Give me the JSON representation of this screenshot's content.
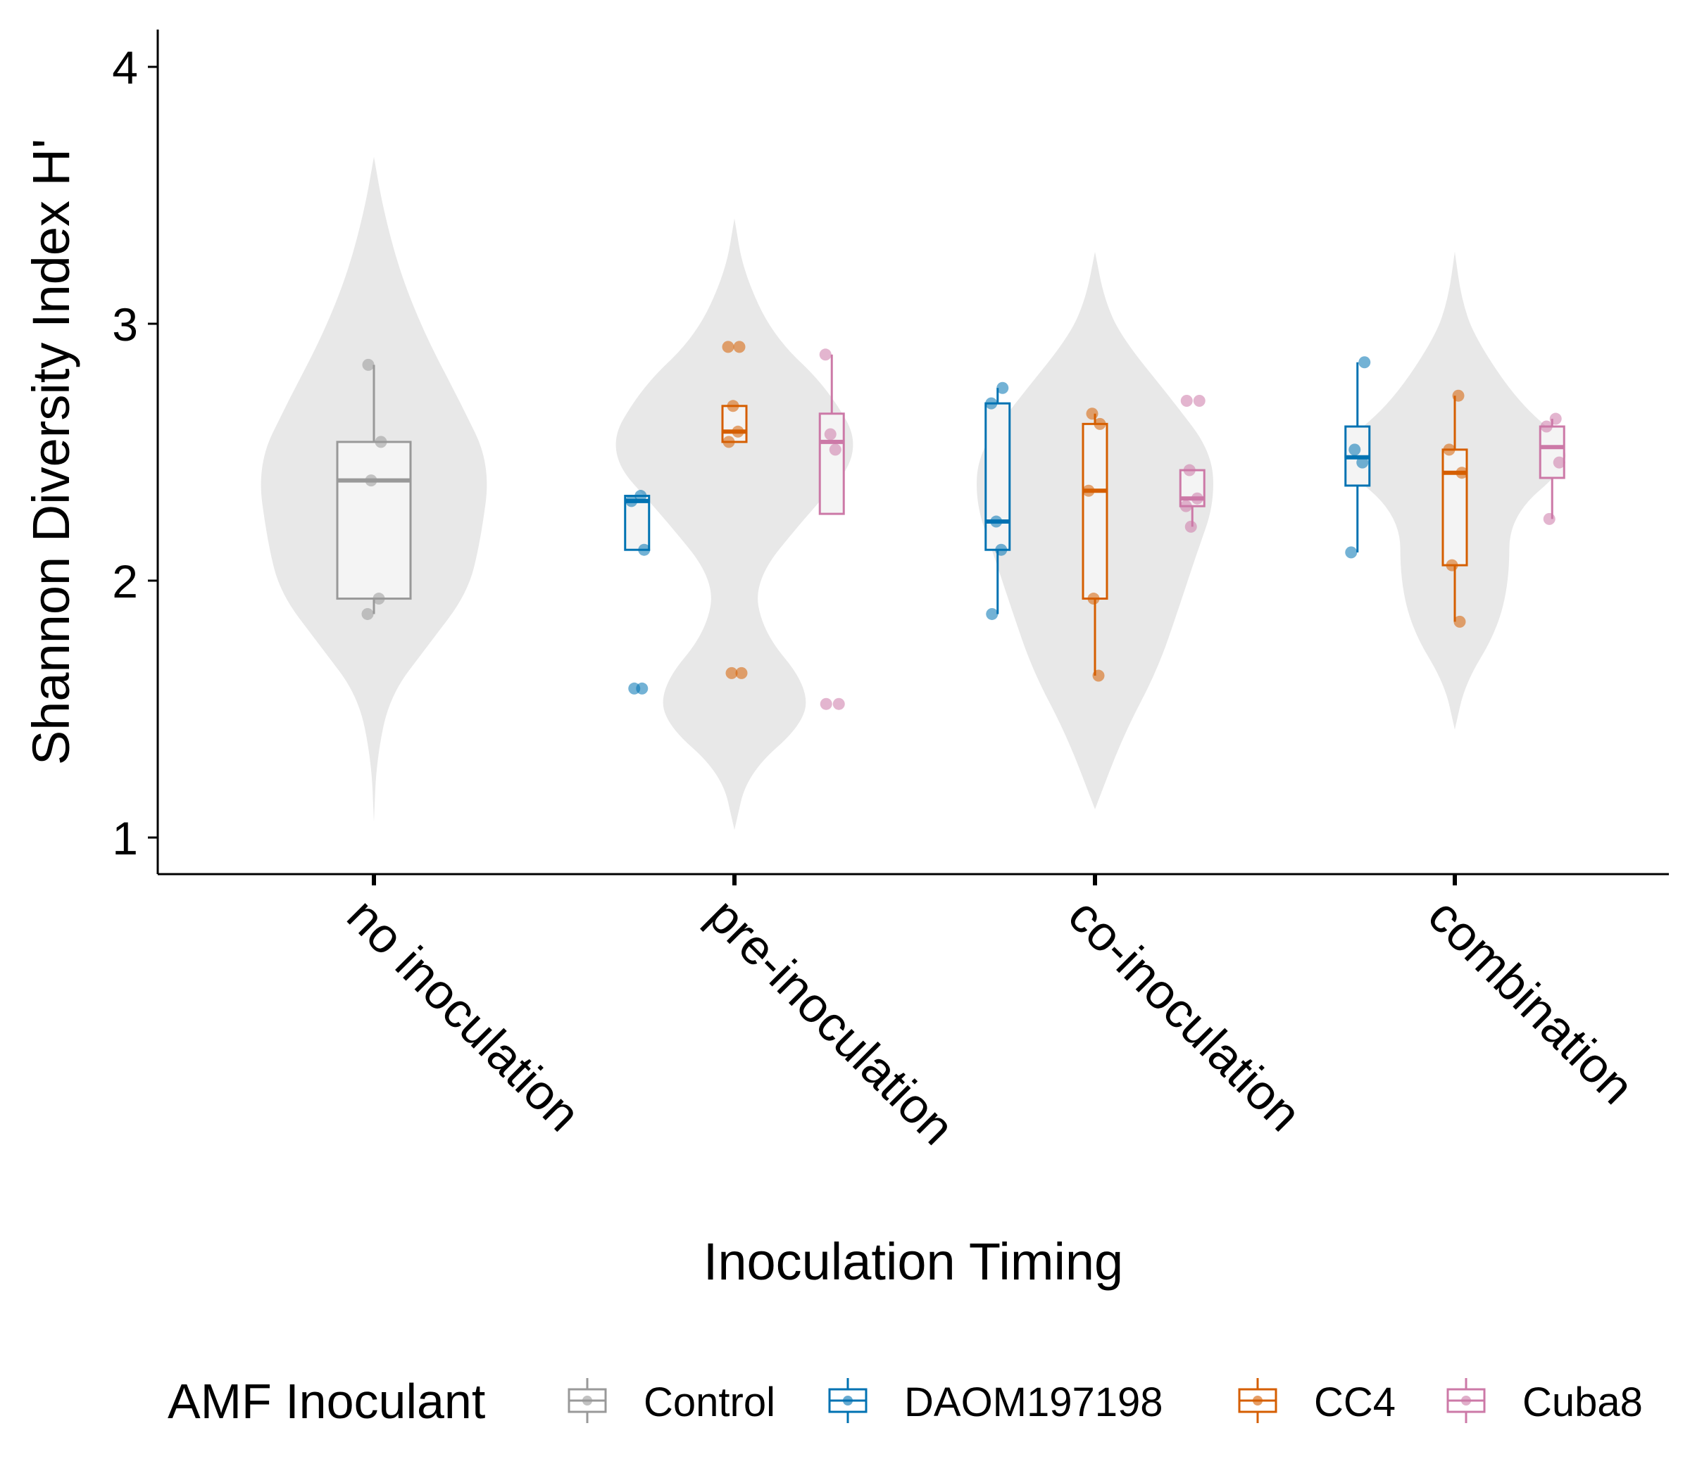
{
  "chart_data": {
    "type": "violin+box+strip",
    "xlabel": "Inoculation Timing",
    "ylabel": "Shannon Diversity Index H'",
    "ylim": [
      0.85,
      4.15
    ],
    "yticks": [
      1,
      2,
      3,
      4
    ],
    "categories": [
      "no inoculation",
      "pre-inoculation",
      "co-inoculation",
      "combination"
    ],
    "legend": {
      "title": "AMF Inoculant",
      "position": "bottom",
      "entries": [
        "Control",
        "DAOM197198",
        "CC4",
        "Cuba8"
      ]
    },
    "colors": {
      "Control": "#999999",
      "DAOM197198": "#0072B2",
      "CC4": "#D55E00",
      "Cuba8": "#CC79A7",
      "violin": "#E8E8E8",
      "box_fill": "#F4F4F4"
    },
    "violins": [
      {
        "category": "no inoculation",
        "min": 1.06,
        "max": 3.65,
        "profile": [
          [
            1.06,
            0.0
          ],
          [
            1.3,
            0.02
          ],
          [
            1.55,
            0.12
          ],
          [
            1.75,
            0.42
          ],
          [
            1.95,
            0.72
          ],
          [
            2.15,
            0.82
          ],
          [
            2.45,
            0.9
          ],
          [
            2.7,
            0.66
          ],
          [
            2.95,
            0.4
          ],
          [
            3.2,
            0.2
          ],
          [
            3.45,
            0.07
          ],
          [
            3.65,
            0.0
          ]
        ]
      },
      {
        "category": "pre-inoculation",
        "min": 1.03,
        "max": 3.41,
        "profile": [
          [
            1.03,
            0.0
          ],
          [
            1.25,
            0.1
          ],
          [
            1.45,
            0.55
          ],
          [
            1.6,
            0.55
          ],
          [
            1.8,
            0.22
          ],
          [
            2.0,
            0.15
          ],
          [
            2.25,
            0.55
          ],
          [
            2.5,
            1.0
          ],
          [
            2.75,
            0.72
          ],
          [
            2.95,
            0.3
          ],
          [
            3.2,
            0.07
          ],
          [
            3.41,
            0.0
          ]
        ]
      },
      {
        "category": "co-inoculation",
        "min": 1.11,
        "max": 3.28,
        "profile": [
          [
            1.11,
            0.0
          ],
          [
            1.4,
            0.22
          ],
          [
            1.65,
            0.48
          ],
          [
            1.9,
            0.65
          ],
          [
            2.1,
            0.78
          ],
          [
            2.3,
            0.92
          ],
          [
            2.5,
            0.9
          ],
          [
            2.7,
            0.6
          ],
          [
            2.95,
            0.2
          ],
          [
            3.1,
            0.07
          ],
          [
            3.28,
            0.0
          ]
        ]
      },
      {
        "category": "combination",
        "min": 1.42,
        "max": 3.28,
        "profile": [
          [
            1.42,
            0.0
          ],
          [
            1.6,
            0.08
          ],
          [
            1.8,
            0.32
          ],
          [
            2.0,
            0.42
          ],
          [
            2.25,
            0.42
          ],
          [
            2.45,
            0.88
          ],
          [
            2.55,
            0.82
          ],
          [
            2.7,
            0.48
          ],
          [
            2.95,
            0.15
          ],
          [
            3.1,
            0.05
          ],
          [
            3.28,
            0.0
          ]
        ]
      }
    ],
    "boxes": [
      {
        "category": "no inoculation",
        "series": "Control",
        "pos": 0,
        "whisker_low": 1.87,
        "q1": 1.93,
        "median": 2.39,
        "q3": 2.54,
        "whisker_high": 2.84,
        "points": [
          1.87,
          1.93,
          2.39,
          2.54,
          2.84
        ]
      },
      {
        "category": "pre-inoculation",
        "series": "DAOM197198",
        "pos": -0.27,
        "whisker_low": 2.12,
        "q1": 2.12,
        "median": 2.31,
        "q3": 2.33,
        "whisker_high": 2.33,
        "points": [
          1.58,
          1.58,
          2.12,
          2.31,
          2.33
        ]
      },
      {
        "category": "pre-inoculation",
        "series": "CC4",
        "pos": 0.0,
        "whisker_low": 2.54,
        "q1": 2.54,
        "median": 2.58,
        "q3": 2.68,
        "whisker_high": 2.68,
        "points": [
          1.64,
          1.64,
          2.54,
          2.58,
          2.68,
          2.91,
          2.91
        ]
      },
      {
        "category": "pre-inoculation",
        "series": "Cuba8",
        "pos": 0.27,
        "whisker_low": 2.26,
        "q1": 2.26,
        "median": 2.54,
        "q3": 2.65,
        "whisker_high": 2.88,
        "points": [
          1.52,
          1.52,
          2.51,
          2.57,
          2.88
        ]
      },
      {
        "category": "co-inoculation",
        "series": "DAOM197198",
        "pos": -0.27,
        "whisker_low": 1.87,
        "q1": 2.12,
        "median": 2.23,
        "q3": 2.69,
        "whisker_high": 2.75,
        "points": [
          1.87,
          2.12,
          2.23,
          2.69,
          2.75
        ]
      },
      {
        "category": "co-inoculation",
        "series": "CC4",
        "pos": 0.0,
        "whisker_low": 1.63,
        "q1": 1.93,
        "median": 2.35,
        "q3": 2.61,
        "whisker_high": 2.65,
        "points": [
          1.63,
          1.93,
          2.35,
          2.61,
          2.65
        ]
      },
      {
        "category": "co-inoculation",
        "series": "Cuba8",
        "pos": 0.27,
        "whisker_low": 2.21,
        "q1": 2.29,
        "median": 2.32,
        "q3": 2.43,
        "whisker_high": 2.43,
        "points": [
          2.21,
          2.29,
          2.32,
          2.43,
          2.7,
          2.7
        ]
      },
      {
        "category": "combination",
        "series": "DAOM197198",
        "pos": -0.27,
        "whisker_low": 2.11,
        "q1": 2.37,
        "median": 2.48,
        "q3": 2.6,
        "whisker_high": 2.85,
        "points": [
          2.11,
          2.46,
          2.51,
          2.85
        ]
      },
      {
        "category": "combination",
        "series": "CC4",
        "pos": 0.0,
        "whisker_low": 1.84,
        "q1": 2.06,
        "median": 2.42,
        "q3": 2.51,
        "whisker_high": 2.72,
        "points": [
          1.84,
          2.06,
          2.42,
          2.51,
          2.72
        ]
      },
      {
        "category": "combination",
        "series": "Cuba8",
        "pos": 0.27,
        "whisker_low": 2.24,
        "q1": 2.4,
        "median": 2.52,
        "q3": 2.6,
        "whisker_high": 2.63,
        "points": [
          2.24,
          2.46,
          2.6,
          2.63
        ]
      }
    ]
  }
}
